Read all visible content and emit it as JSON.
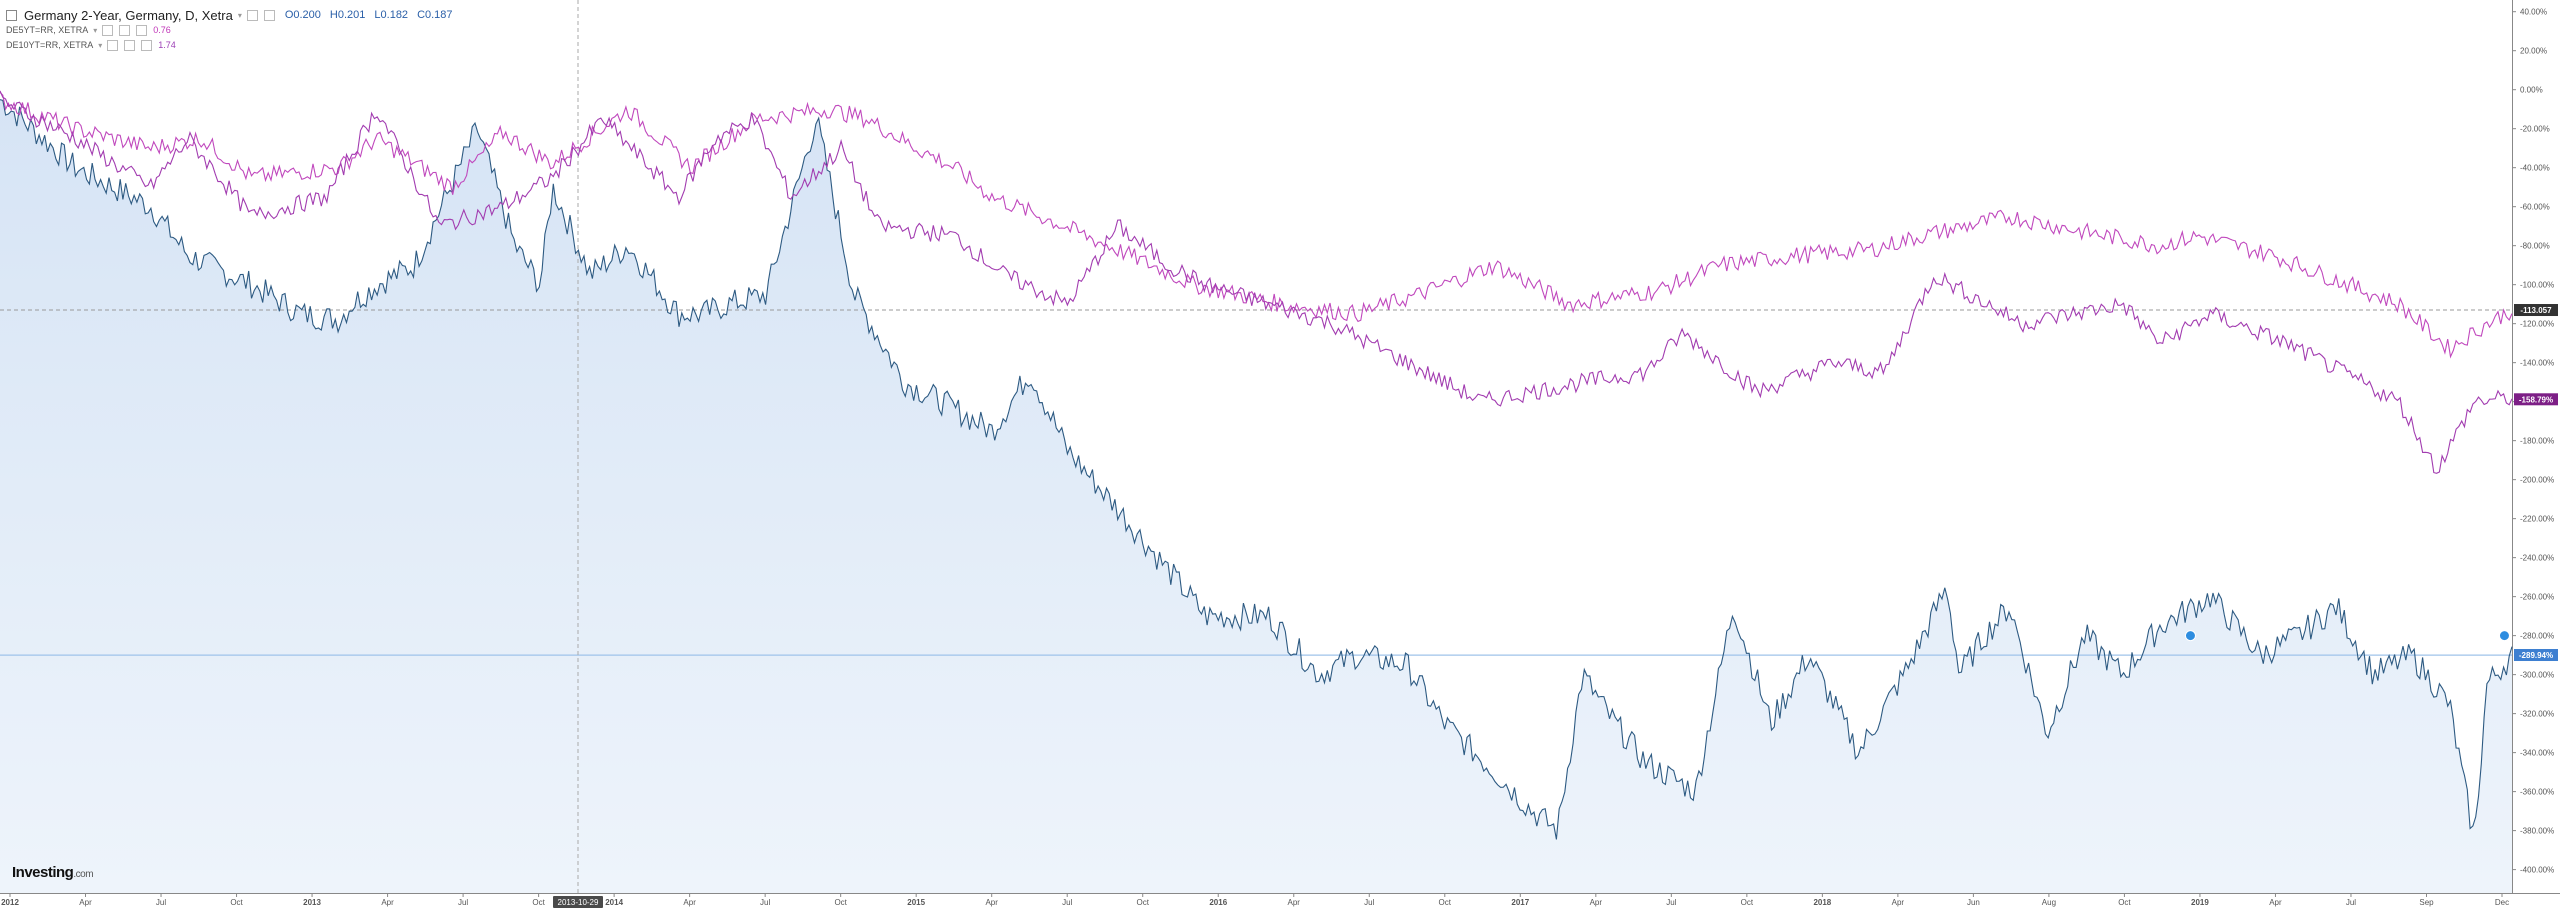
{
  "legend": {
    "main": {
      "title": "Germany 2-Year, Germany, D, Xetra",
      "open": "O0.200",
      "high": "H0.201",
      "low": "L0.182",
      "close": "C0.187"
    },
    "series2": {
      "name": "DE5YT=RR, XETRA",
      "value": "0.76",
      "color": "#c035b8"
    },
    "series3": {
      "name": "DE10YT=RR, XETRA",
      "value": "1.74",
      "color": "#9c3fb5"
    }
  },
  "crosshair": {
    "date_label": "2013-10-29"
  },
  "price_labels": {
    "de2y": "-289.94%",
    "de5y": "-113.057",
    "de10y": "-158.79%"
  },
  "logo": {
    "text": "Investing",
    "suffix": ".com"
  },
  "colors": {
    "de2y": "#2d5a82",
    "de2y_fill": "#dce8f6",
    "de5y": "#c048bd",
    "de10y": "#a23cb0",
    "axis_text": "#555555",
    "h_line": "#9fc3ea"
  },
  "chart_data": {
    "type": "line",
    "x_labels": [
      "2012",
      "Apr",
      "Jul",
      "Oct",
      "2013",
      "Apr",
      "Jul",
      "Oct",
      "2014",
      "Apr",
      "Jul",
      "Oct",
      "2015",
      "Apr",
      "Jul",
      "Oct",
      "2016",
      "Apr",
      "Jul",
      "Oct",
      "2017",
      "Apr",
      "Jul",
      "Oct",
      "2018",
      "Apr",
      "Jun",
      "Aug",
      "Oct",
      "2019",
      "Apr",
      "Jul",
      "Sep",
      "Dec"
    ],
    "y_ticks": [
      40,
      20,
      0,
      -20,
      -40,
      -60,
      -80,
      -100,
      -120,
      -140,
      -160,
      -180,
      -200,
      -220,
      -240,
      -260,
      -280,
      -300,
      -320,
      -340,
      -360,
      -380,
      -400
    ],
    "y_unit": "%",
    "ylim": [
      -412,
      46
    ],
    "series": [
      {
        "key": "de2y",
        "x": [
          0,
          0.03,
          0.06,
          0.075,
          0.1,
          0.12,
          0.135,
          0.14,
          0.15,
          0.165,
          0.19,
          0.205,
          0.215,
          0.22,
          0.235,
          0.25,
          0.27,
          0.28,
          0.29,
          0.305,
          0.325,
          0.34,
          0.36,
          0.375,
          0.395,
          0.41,
          0.425,
          0.445,
          0.48,
          0.505,
          0.525,
          0.54,
          0.56,
          0.575,
          0.595,
          0.61,
          0.62,
          0.63,
          0.64,
          0.655,
          0.675,
          0.69,
          0.705,
          0.72,
          0.74,
          0.76,
          0.775,
          0.78,
          0.79,
          0.8,
          0.815,
          0.83,
          0.845,
          0.86,
          0.88,
          0.9,
          0.915,
          0.93,
          0.945,
          0.96,
          0.975,
          0.985,
          0.99,
          1
        ],
        "y": [
          -5,
          -40,
          -60,
          -85,
          -100,
          -115,
          -118,
          -110,
          -100,
          -90,
          -20,
          -80,
          -100,
          -50,
          -95,
          -80,
          -115,
          -115,
          -110,
          -105,
          -15,
          -105,
          -150,
          -160,
          -175,
          -145,
          -185,
          -215,
          -270,
          -270,
          -300,
          -290,
          -295,
          -325,
          -350,
          -370,
          -380,
          -300,
          -320,
          -345,
          -360,
          -265,
          -325,
          -290,
          -340,
          -295,
          -255,
          -300,
          -280,
          -265,
          -330,
          -280,
          -300,
          -275,
          -260,
          -290,
          -280,
          -265,
          -300,
          -290,
          -315,
          -385,
          -305,
          -290
        ]
      },
      {
        "key": "de5y",
        "x": [
          0,
          0.03,
          0.06,
          0.08,
          0.1,
          0.135,
          0.15,
          0.18,
          0.2,
          0.22,
          0.25,
          0.275,
          0.3,
          0.33,
          0.345,
          0.365,
          0.38,
          0.395,
          0.42,
          0.45,
          0.475,
          0.51,
          0.54,
          0.565,
          0.595,
          0.625,
          0.66,
          0.685,
          0.715,
          0.745,
          0.765,
          0.8,
          0.83,
          0.86,
          0.875,
          0.905,
          0.935,
          0.955,
          0.975,
          0.99,
          1
        ],
        "y": [
          -5,
          -20,
          -30,
          -25,
          -45,
          -40,
          -25,
          -50,
          -22,
          -38,
          -10,
          -40,
          -15,
          -10,
          -15,
          -30,
          -40,
          -55,
          -68,
          -85,
          -100,
          -110,
          -115,
          -105,
          -90,
          -110,
          -103,
          -90,
          -85,
          -82,
          -75,
          -65,
          -73,
          -80,
          -75,
          -85,
          -100,
          -110,
          -133,
          -120,
          -113
        ]
      },
      {
        "key": "de10y",
        "x": [
          0,
          0.03,
          0.06,
          0.075,
          0.1,
          0.13,
          0.15,
          0.175,
          0.2,
          0.22,
          0.24,
          0.27,
          0.285,
          0.3,
          0.315,
          0.335,
          0.35,
          0.38,
          0.4,
          0.425,
          0.445,
          0.465,
          0.48,
          0.53,
          0.56,
          0.59,
          0.63,
          0.655,
          0.67,
          0.7,
          0.73,
          0.75,
          0.77,
          0.805,
          0.845,
          0.86,
          0.88,
          0.91,
          0.94,
          0.955,
          0.97,
          0.985,
          1
        ],
        "y": [
          -5,
          -25,
          -50,
          -25,
          -65,
          -55,
          -10,
          -70,
          -60,
          -45,
          -15,
          -55,
          -25,
          -15,
          -55,
          -30,
          -70,
          -75,
          -95,
          -110,
          -70,
          -90,
          -100,
          -120,
          -140,
          -160,
          -150,
          -145,
          -125,
          -155,
          -140,
          -145,
          -95,
          -120,
          -110,
          -130,
          -115,
          -130,
          -150,
          -160,
          -195,
          -160,
          -158
        ]
      }
    ]
  }
}
